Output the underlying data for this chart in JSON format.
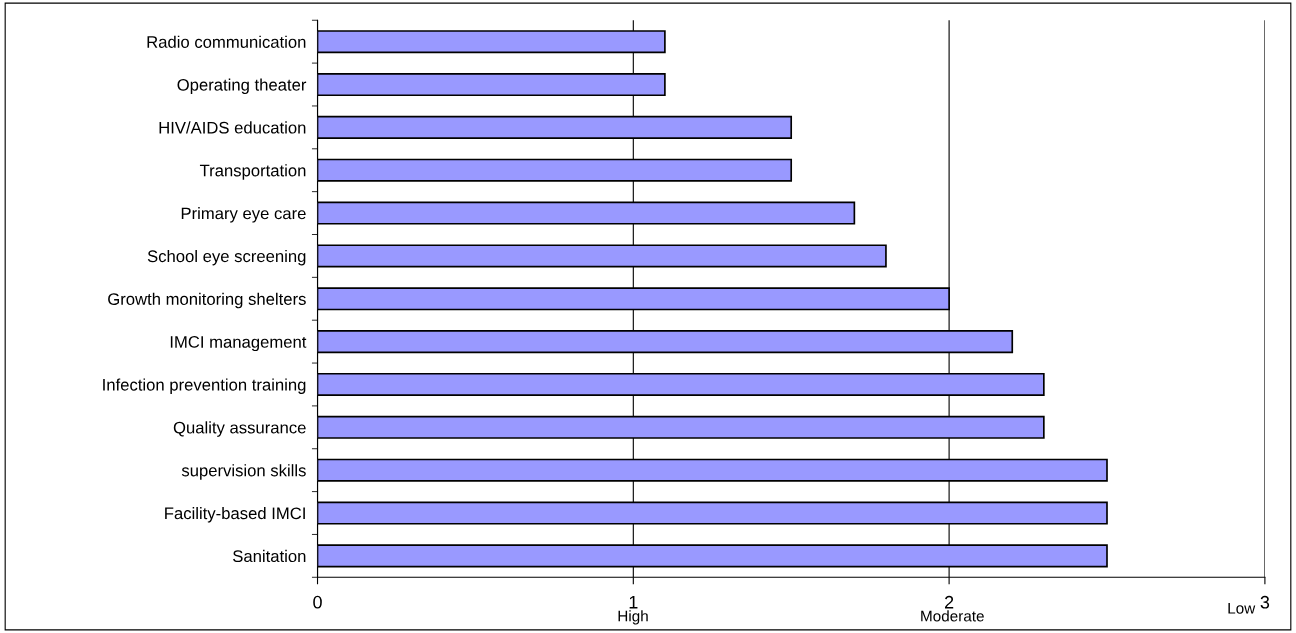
{
  "chart_data": {
    "type": "bar",
    "orientation": "horizontal",
    "categories": [
      "Radio communication",
      "Operating theater",
      "HIV/AIDS education",
      "Transportation",
      "Primary eye care",
      "School eye screening",
      "Growth monitoring shelters",
      "IMCI management",
      "Infection prevention training",
      "Quality assurance",
      "supervision skills",
      "Facility-based IMCI",
      "Sanitation"
    ],
    "values": [
      1.1,
      1.1,
      1.5,
      1.5,
      1.7,
      1.8,
      2.0,
      2.2,
      2.3,
      2.3,
      2.5,
      2.5,
      2.5
    ],
    "color": "#9999ff",
    "xlim": [
      0,
      3
    ],
    "xticks": [
      0,
      1,
      2,
      3
    ],
    "grid": "x",
    "annotations": [
      "High",
      "Moderate",
      "Low"
    ]
  }
}
